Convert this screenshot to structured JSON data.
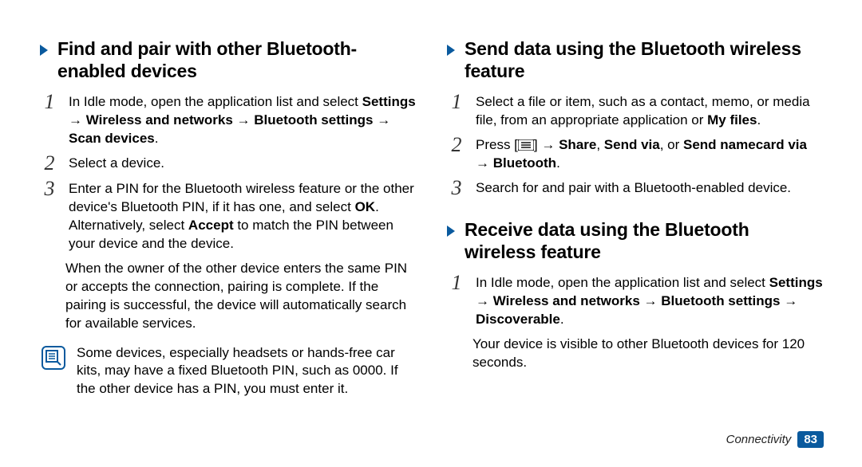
{
  "accent_color": "#0a5a9e",
  "left": {
    "heading": "Find and pair with other Bluetooth-enabled devices",
    "steps": [
      {
        "num": "1",
        "runs": [
          {
            "t": "In Idle mode, open the application list and select ",
            "b": false
          },
          {
            "t": "Settings",
            "b": true
          },
          {
            "t": " → ",
            "b": false
          },
          {
            "t": "Wireless and networks",
            "b": true
          },
          {
            "t": " → ",
            "b": false
          },
          {
            "t": "Bluetooth settings",
            "b": true
          },
          {
            "t": " → ",
            "b": false
          },
          {
            "t": "Scan devices",
            "b": true
          },
          {
            "t": ".",
            "b": false
          }
        ]
      },
      {
        "num": "2",
        "runs": [
          {
            "t": "Select a device.",
            "b": false
          }
        ]
      },
      {
        "num": "3",
        "runs": [
          {
            "t": "Enter a PIN for the Bluetooth wireless feature or the other device's Bluetooth PIN, if it has one, and select ",
            "b": false
          },
          {
            "t": "OK",
            "b": true
          },
          {
            "t": ". Alternatively, select ",
            "b": false
          },
          {
            "t": "Accept",
            "b": true
          },
          {
            "t": " to match the PIN between your device and the device.",
            "b": false
          }
        ]
      }
    ],
    "continuation": "When the owner of the other device enters the same PIN or accepts the connection, pairing is complete. If the pairing is successful, the device will automatically search for available services.",
    "note": "Some devices, especially headsets or hands-free car kits, may have a fixed Bluetooth PIN, such as 0000. If the other device has a PIN, you must enter it."
  },
  "right": {
    "sec1": {
      "heading": "Send data using the Bluetooth wireless feature",
      "steps": [
        {
          "num": "1",
          "runs": [
            {
              "t": "Select a file or item, such as a contact, memo, or media file, from an appropriate application or ",
              "b": false
            },
            {
              "t": "My files",
              "b": true
            },
            {
              "t": ".",
              "b": false
            }
          ]
        },
        {
          "num": "2",
          "runs": [
            {
              "t": "Press [",
              "b": false
            },
            {
              "icon": "menu"
            },
            {
              "t": "] → ",
              "b": false
            },
            {
              "t": "Share",
              "b": true
            },
            {
              "t": ", ",
              "b": false
            },
            {
              "t": "Send via",
              "b": true
            },
            {
              "t": ", or ",
              "b": false
            },
            {
              "t": "Send namecard via",
              "b": true
            },
            {
              "t": " → ",
              "b": false
            },
            {
              "t": "Bluetooth",
              "b": true
            },
            {
              "t": ".",
              "b": false
            }
          ]
        },
        {
          "num": "3",
          "runs": [
            {
              "t": "Search for and pair with a Bluetooth-enabled device.",
              "b": false
            }
          ]
        }
      ]
    },
    "sec2": {
      "heading": "Receive data using the Bluetooth wireless feature",
      "steps": [
        {
          "num": "1",
          "runs": [
            {
              "t": "In Idle mode, open the application list and select ",
              "b": false
            },
            {
              "t": "Settings",
              "b": true
            },
            {
              "t": " → ",
              "b": false
            },
            {
              "t": "Wireless and networks",
              "b": true
            },
            {
              "t": " → ",
              "b": false
            },
            {
              "t": "Bluetooth settings",
              "b": true
            },
            {
              "t": " → ",
              "b": false
            },
            {
              "t": "Discoverable",
              "b": true
            },
            {
              "t": ".",
              "b": false
            }
          ]
        }
      ],
      "continuation": "Your device is visible to other Bluetooth devices for 120 seconds."
    }
  },
  "footer": {
    "section": "Connectivity",
    "page": "83"
  }
}
